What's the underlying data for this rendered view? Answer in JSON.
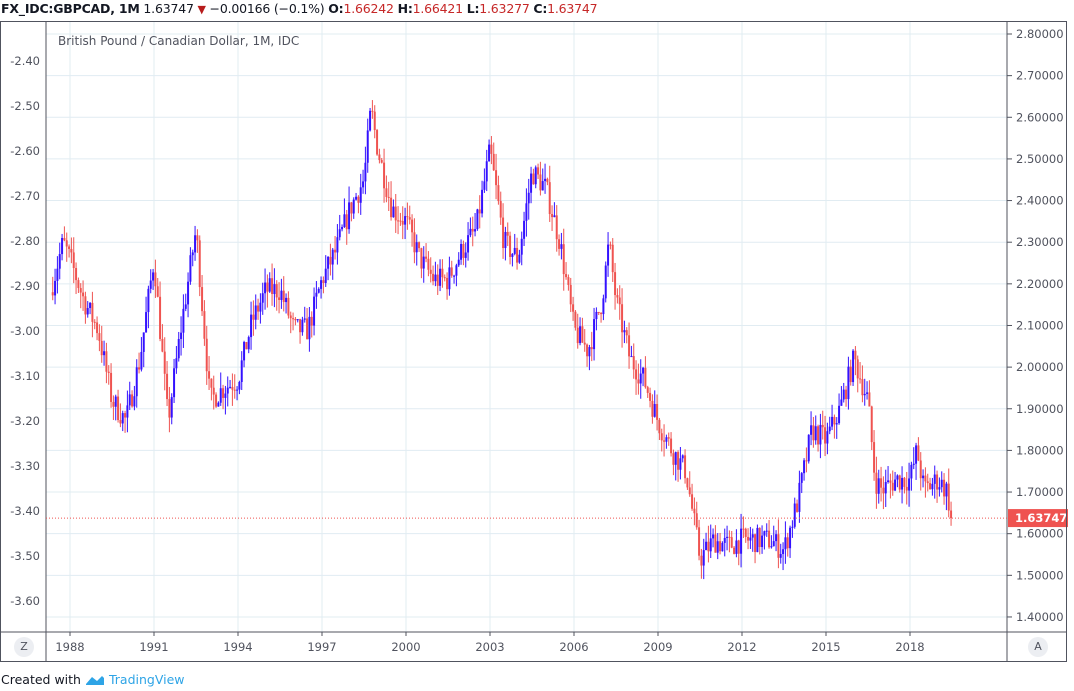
{
  "header": {
    "symbol": "FX_IDC:GBPCAD, 1M",
    "last": "1.63747",
    "change": "−0.00166 (−0.1%)",
    "direction_icon": "triangle-down-icon",
    "o_label": "O:",
    "o": "1.66242",
    "h_label": "H:",
    "h": "1.66421",
    "l_label": "L:",
    "l": "1.63277",
    "c_label": "C:",
    "c": "1.63747"
  },
  "footer": {
    "created_with": "Created with",
    "brand": "TradingView"
  },
  "buttons": {
    "z": "Z",
    "a": "A"
  },
  "colors": {
    "up": "#3311ff",
    "down": "#ef5350",
    "grid": "#e1ecf2",
    "axis": "#50535e",
    "price_label": "#ef5350"
  },
  "chart_data": {
    "type": "candlestick",
    "title": "British Pound / Canadian Dollar, 1M, IDC",
    "interval": "1M",
    "grid": true,
    "right_axis": {
      "ylim": [
        1.37,
        2.835
      ],
      "ticks": [
        "2.80000",
        "2.70000",
        "2.60000",
        "2.50000",
        "2.40000",
        "2.30000",
        "2.20000",
        "2.10000",
        "2.00000",
        "1.90000",
        "1.80000",
        "1.70000",
        "1.60000",
        "1.50000",
        "1.40000"
      ]
    },
    "left_axis": {
      "ticks": [
        "-2.40",
        "-2.50",
        "-2.60",
        "-2.70",
        "-2.80",
        "-2.90",
        "-3.00",
        "-3.10",
        "-3.20",
        "-3.30",
        "-3.40",
        "-3.50",
        "-3.60"
      ]
    },
    "x_axis": {
      "ticks": [
        "1988",
        "1991",
        "1994",
        "1997",
        "2000",
        "2003",
        "2006",
        "2009",
        "2012",
        "2015",
        "2018"
      ]
    },
    "last_price_label": "1.63747",
    "approx_close_series": [
      [
        1987.3,
        2.18
      ],
      [
        1987.75,
        2.3
      ],
      [
        1988.0,
        2.26
      ],
      [
        1988.5,
        2.16
      ],
      [
        1989.0,
        2.09
      ],
      [
        1989.5,
        1.92
      ],
      [
        1990.0,
        1.87
      ],
      [
        1990.5,
        2.02
      ],
      [
        1991.0,
        2.26
      ],
      [
        1991.5,
        1.87
      ],
      [
        1992.0,
        2.11
      ],
      [
        1992.5,
        2.33
      ],
      [
        1993.0,
        1.92
      ],
      [
        1993.5,
        1.95
      ],
      [
        1994.0,
        1.97
      ],
      [
        1994.5,
        2.11
      ],
      [
        1995.0,
        2.185
      ],
      [
        1995.5,
        2.185
      ],
      [
        1996.0,
        2.09
      ],
      [
        1996.5,
        2.09
      ],
      [
        1997.0,
        2.21
      ],
      [
        1997.5,
        2.28
      ],
      [
        1998.0,
        2.38
      ],
      [
        1998.5,
        2.45
      ],
      [
        1998.75,
        2.62
      ],
      [
        1999.0,
        2.52
      ],
      [
        1999.5,
        2.38
      ],
      [
        2000.0,
        2.35
      ],
      [
        2000.5,
        2.26
      ],
      [
        2001.0,
        2.21
      ],
      [
        2001.5,
        2.21
      ],
      [
        2002.0,
        2.28
      ],
      [
        2002.5,
        2.33
      ],
      [
        2003.0,
        2.52
      ],
      [
        2003.5,
        2.3
      ],
      [
        2004.0,
        2.26
      ],
      [
        2004.5,
        2.47
      ],
      [
        2005.0,
        2.43
      ],
      [
        2005.5,
        2.3
      ],
      [
        2006.0,
        2.09
      ],
      [
        2006.5,
        2.04
      ],
      [
        2007.0,
        2.16
      ],
      [
        2007.25,
        2.3
      ],
      [
        2007.5,
        2.16
      ],
      [
        2008.0,
        2.02
      ],
      [
        2008.5,
        1.97
      ],
      [
        2009.0,
        1.87
      ],
      [
        2009.5,
        1.8
      ],
      [
        2010.0,
        1.75
      ],
      [
        2010.5,
        1.54
      ],
      [
        2011.0,
        1.585
      ],
      [
        2011.5,
        1.57
      ],
      [
        2012.0,
        1.585
      ],
      [
        2012.5,
        1.585
      ],
      [
        2013.0,
        1.585
      ],
      [
        2013.5,
        1.56
      ],
      [
        2014.0,
        1.68
      ],
      [
        2014.5,
        1.85
      ],
      [
        2015.0,
        1.825
      ],
      [
        2015.5,
        1.9
      ],
      [
        2016.0,
        2.02
      ],
      [
        2016.5,
        1.92
      ],
      [
        2016.75,
        1.73
      ],
      [
        2017.0,
        1.705
      ],
      [
        2017.5,
        1.73
      ],
      [
        2018.0,
        1.73
      ],
      [
        2018.25,
        1.8
      ],
      [
        2018.5,
        1.705
      ],
      [
        2019.0,
        1.73
      ],
      [
        2019.3,
        1.705
      ],
      [
        2019.5,
        1.63747
      ]
    ]
  }
}
